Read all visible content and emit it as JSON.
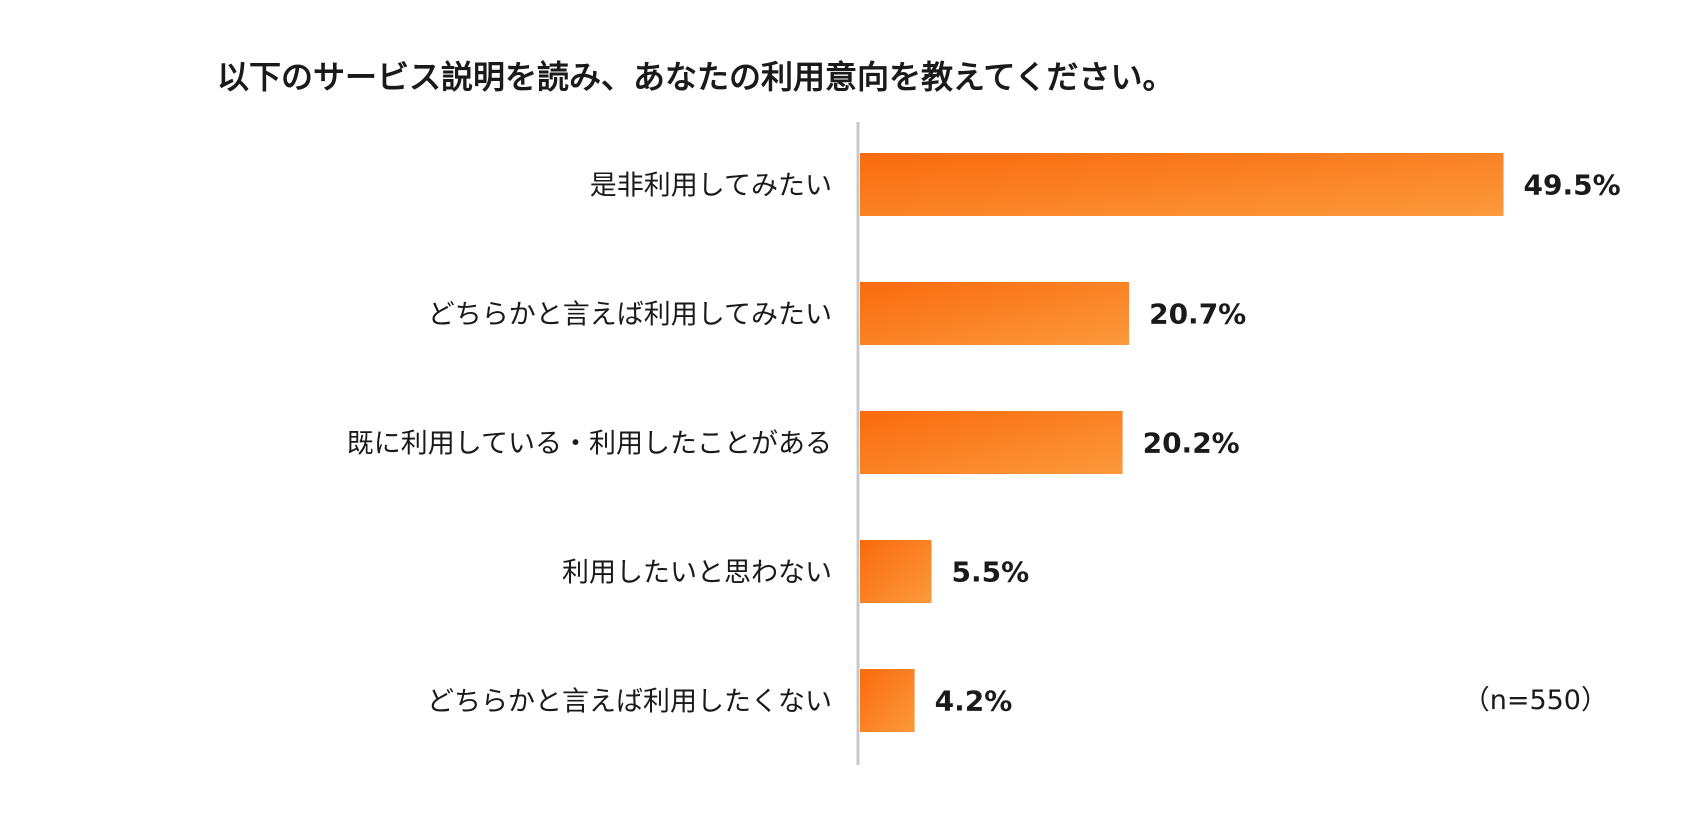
{
  "chart_data": {
    "type": "bar",
    "orientation": "horizontal",
    "title": "以下のサービス説明を読み、あなたの利用意向を教えてください。",
    "categories": [
      "是非利用してみたい",
      "どちらかと言えば利用してみたい",
      "既に利用している・利用したことがある",
      "利用したいと思わない",
      "どちらかと言えば利用したくない"
    ],
    "values": [
      49.5,
      20.7,
      20.2,
      5.5,
      4.2
    ],
    "value_labels": [
      "49.5%",
      "20.7%",
      "20.2%",
      "5.5%",
      "4.2%"
    ],
    "unit": "%",
    "xlim": [
      0,
      60
    ],
    "grid": false,
    "legend": "none",
    "note": "（n=550）",
    "colors": {
      "bar_start": "#f96a0e",
      "bar_end": "#fb9a3c",
      "axis": "#c8c8c8"
    }
  }
}
